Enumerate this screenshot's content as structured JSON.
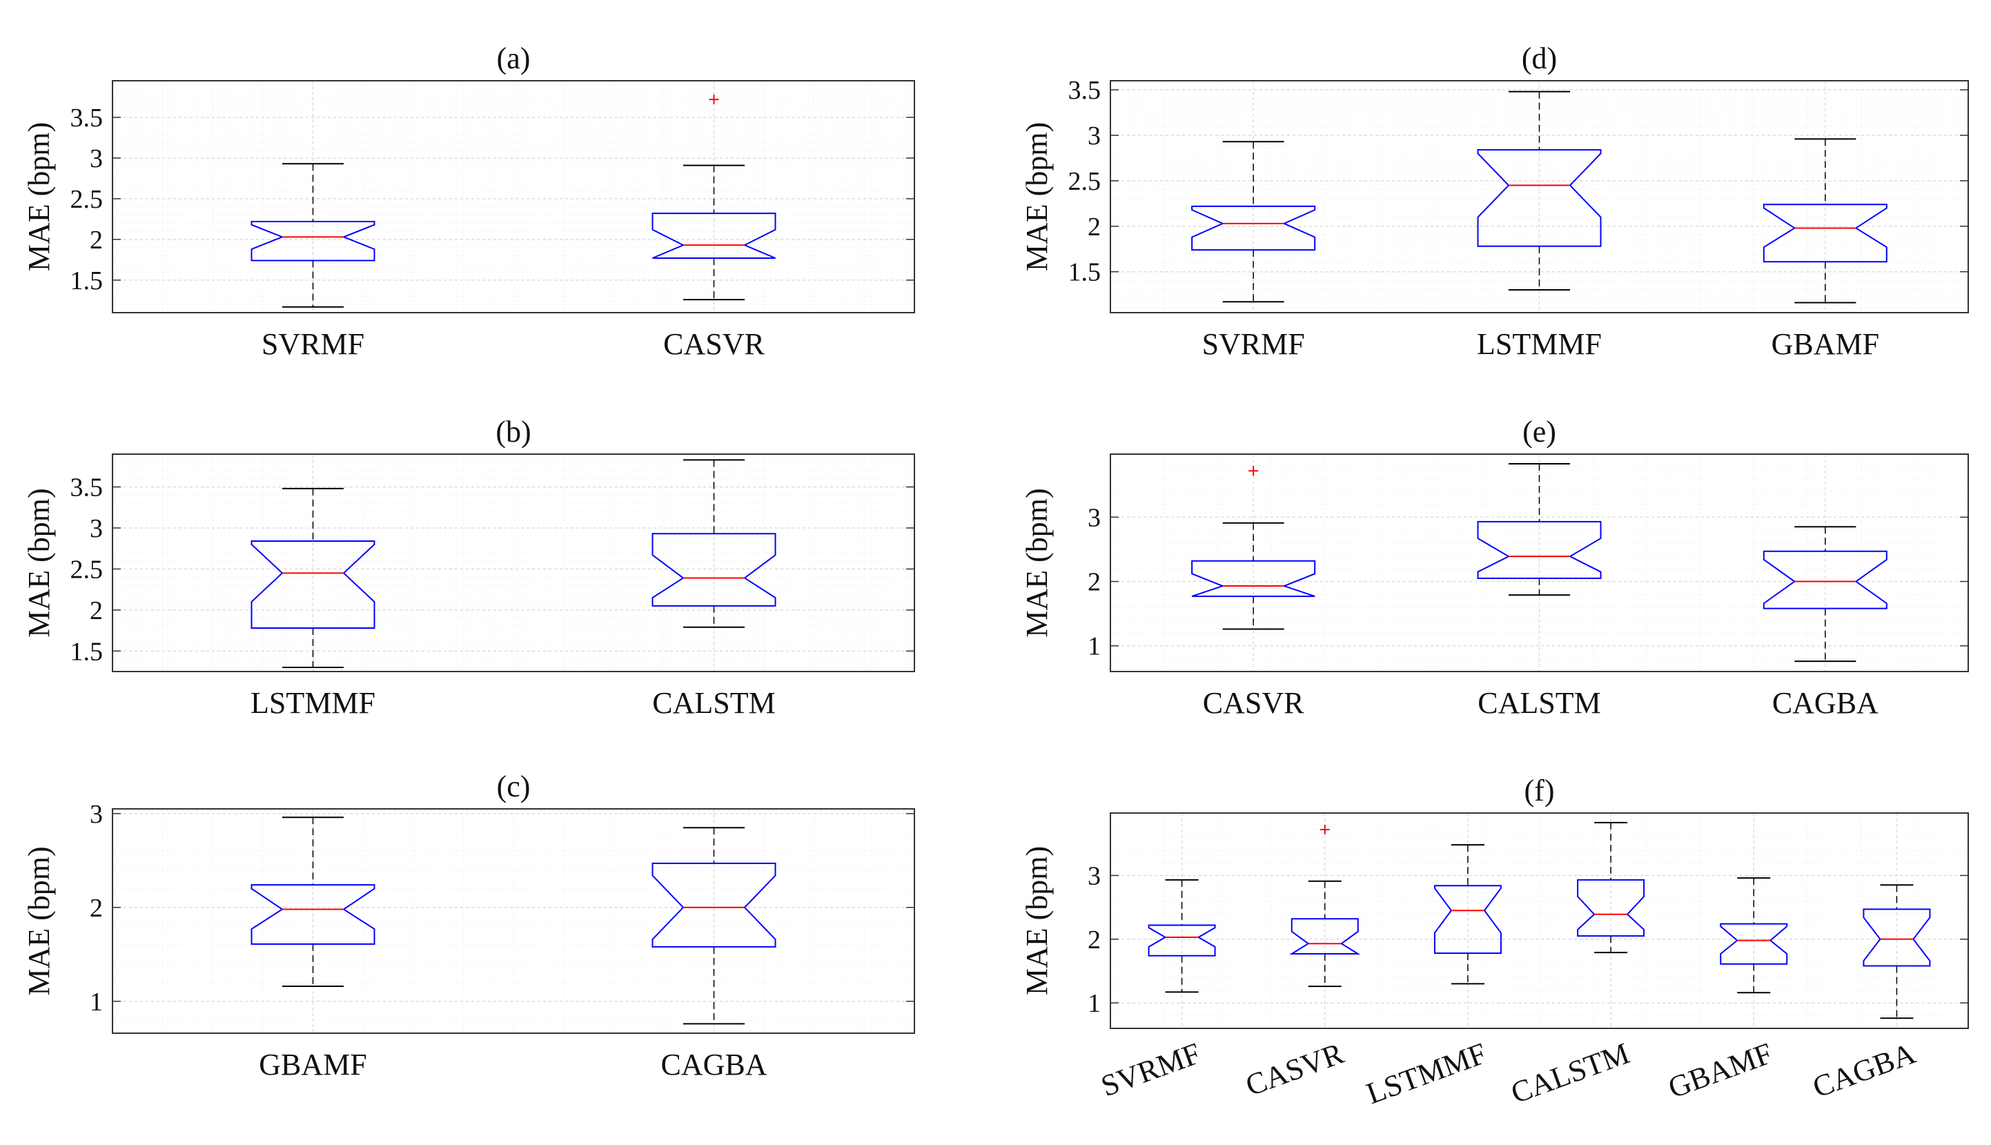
{
  "chart_data": [
    {
      "type": "box",
      "panel": "a",
      "title": "(a)",
      "ylabel": "MAE (bpm)",
      "ylim": [
        1.1,
        3.95
      ],
      "yticks": [
        1.5,
        2,
        2.5,
        3,
        3.5
      ],
      "ytick_labels": [
        "1.5",
        "2",
        "2.5",
        "3",
        "3.5"
      ],
      "grid": true,
      "boxes": [
        {
          "label": "SVRMF",
          "whisker_low": 1.17,
          "q1": 1.74,
          "median": 2.03,
          "q3": 2.22,
          "whisker_high": 2.93,
          "notch_low": 1.88,
          "notch_high": 2.18,
          "outliers": []
        },
        {
          "label": "CASVR",
          "whisker_low": 1.26,
          "q1": 1.77,
          "median": 1.93,
          "q3": 2.32,
          "whisker_high": 2.91,
          "notch_low": 1.77,
          "notch_high": 2.12,
          "outliers": [
            3.72
          ]
        }
      ]
    },
    {
      "type": "box",
      "panel": "b",
      "title": "(b)",
      "ylabel": "MAE (bpm)",
      "ylim": [
        1.25,
        3.9
      ],
      "yticks": [
        1.5,
        2,
        2.5,
        3,
        3.5
      ],
      "ytick_labels": [
        "1.5",
        "2",
        "2.5",
        "3",
        "3.5"
      ],
      "grid": true,
      "boxes": [
        {
          "label": "LSTMMF",
          "whisker_low": 1.3,
          "q1": 1.78,
          "median": 2.45,
          "q3": 2.84,
          "whisker_high": 3.48,
          "notch_low": 2.1,
          "notch_high": 2.8,
          "outliers": []
        },
        {
          "label": "CALSTM",
          "whisker_low": 1.79,
          "q1": 2.05,
          "median": 2.39,
          "q3": 2.93,
          "whisker_high": 3.83,
          "notch_low": 2.15,
          "notch_high": 2.67,
          "outliers": []
        }
      ]
    },
    {
      "type": "box",
      "panel": "c",
      "title": "(c)",
      "ylabel": "MAE (bpm)",
      "ylim": [
        0.66,
        3.05
      ],
      "yticks": [
        1,
        2,
        3
      ],
      "ytick_labels": [
        "1",
        "2",
        "3"
      ],
      "grid": true,
      "boxes": [
        {
          "label": "GBAMF",
          "whisker_low": 1.16,
          "q1": 1.61,
          "median": 1.98,
          "q3": 2.24,
          "whisker_high": 2.96,
          "notch_low": 1.77,
          "notch_high": 2.2,
          "outliers": []
        },
        {
          "label": "CAGBA",
          "whisker_low": 0.76,
          "q1": 1.58,
          "median": 2.0,
          "q3": 2.47,
          "whisker_high": 2.85,
          "notch_low": 1.66,
          "notch_high": 2.34,
          "outliers": []
        }
      ]
    },
    {
      "type": "box",
      "panel": "d",
      "title": "(d)",
      "ylabel": "MAE (bpm)",
      "ylim": [
        1.05,
        3.6
      ],
      "yticks": [
        1.5,
        2,
        2.5,
        3,
        3.5
      ],
      "ytick_labels": [
        "1.5",
        "2",
        "2.5",
        "3",
        "3.5"
      ],
      "grid": true,
      "boxes": [
        {
          "label": "SVRMF",
          "whisker_low": 1.17,
          "q1": 1.74,
          "median": 2.03,
          "q3": 2.22,
          "whisker_high": 2.93,
          "notch_low": 1.88,
          "notch_high": 2.18,
          "outliers": []
        },
        {
          "label": "LSTMMF",
          "whisker_low": 1.3,
          "q1": 1.78,
          "median": 2.45,
          "q3": 2.84,
          "whisker_high": 3.48,
          "notch_low": 2.1,
          "notch_high": 2.8,
          "outliers": []
        },
        {
          "label": "GBAMF",
          "whisker_low": 1.16,
          "q1": 1.61,
          "median": 1.98,
          "q3": 2.24,
          "whisker_high": 2.96,
          "notch_low": 1.77,
          "notch_high": 2.2,
          "outliers": []
        }
      ]
    },
    {
      "type": "box",
      "panel": "e",
      "title": "(e)",
      "ylabel": "MAE (bpm)",
      "ylim": [
        0.6,
        3.98
      ],
      "yticks": [
        1,
        2,
        3
      ],
      "ytick_labels": [
        "1",
        "2",
        "3"
      ],
      "grid": true,
      "boxes": [
        {
          "label": "CASVR",
          "whisker_low": 1.26,
          "q1": 1.77,
          "median": 1.93,
          "q3": 2.32,
          "whisker_high": 2.91,
          "notch_low": 1.77,
          "notch_high": 2.12,
          "outliers": [
            3.72
          ]
        },
        {
          "label": "CALSTM",
          "whisker_low": 1.79,
          "q1": 2.05,
          "median": 2.39,
          "q3": 2.93,
          "whisker_high": 3.83,
          "notch_low": 2.15,
          "notch_high": 2.67,
          "outliers": []
        },
        {
          "label": "CAGBA",
          "whisker_low": 0.76,
          "q1": 1.58,
          "median": 2.0,
          "q3": 2.47,
          "whisker_high": 2.85,
          "notch_low": 1.66,
          "notch_high": 2.34,
          "outliers": []
        }
      ]
    },
    {
      "type": "box",
      "panel": "f",
      "title": "(f)",
      "ylabel": "MAE (bpm)",
      "ylim": [
        0.6,
        3.98
      ],
      "yticks": [
        1,
        2,
        3
      ],
      "ytick_labels": [
        "1",
        "2",
        "3"
      ],
      "grid": true,
      "rotated_labels": true,
      "boxes": [
        {
          "label": "SVRMF",
          "whisker_low": 1.17,
          "q1": 1.74,
          "median": 2.03,
          "q3": 2.22,
          "whisker_high": 2.93,
          "notch_low": 1.88,
          "notch_high": 2.18,
          "outliers": []
        },
        {
          "label": "CASVR",
          "whisker_low": 1.26,
          "q1": 1.77,
          "median": 1.93,
          "q3": 2.32,
          "whisker_high": 2.91,
          "notch_low": 1.77,
          "notch_high": 2.12,
          "outliers": [
            3.72
          ]
        },
        {
          "label": "LSTMMF",
          "whisker_low": 1.3,
          "q1": 1.78,
          "median": 2.45,
          "q3": 2.84,
          "whisker_high": 3.48,
          "notch_low": 2.1,
          "notch_high": 2.8,
          "outliers": []
        },
        {
          "label": "CALSTM",
          "whisker_low": 1.79,
          "q1": 2.05,
          "median": 2.39,
          "q3": 2.93,
          "whisker_high": 3.83,
          "notch_low": 2.15,
          "notch_high": 2.67,
          "outliers": []
        },
        {
          "label": "GBAMF",
          "whisker_low": 1.16,
          "q1": 1.61,
          "median": 1.98,
          "q3": 2.24,
          "whisker_high": 2.96,
          "notch_low": 1.77,
          "notch_high": 2.2,
          "outliers": []
        },
        {
          "label": "CAGBA",
          "whisker_low": 0.76,
          "q1": 1.58,
          "median": 2.0,
          "q3": 2.47,
          "whisker_high": 2.85,
          "notch_low": 1.66,
          "notch_high": 2.34,
          "outliers": []
        }
      ]
    }
  ],
  "colors": {
    "box": "#0000ff",
    "median": "#ff0000",
    "whisker": "#000000",
    "outlier": "#ff0000",
    "axes": "#333333",
    "grid": "#dddddd",
    "minor_grid": "#eeeeee"
  }
}
